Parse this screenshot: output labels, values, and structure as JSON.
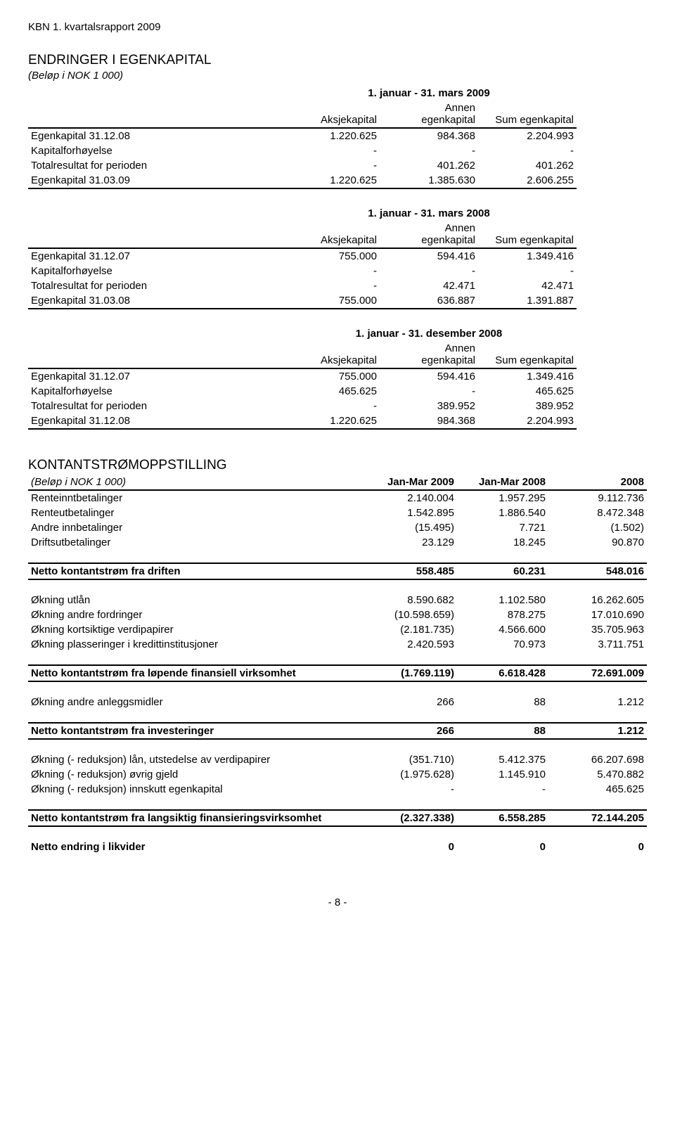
{
  "doc": {
    "header": "KBN 1. kvartalsrapport 2009",
    "footer": "- 8 -"
  },
  "equity": {
    "title": "ENDRINGER I EGENKAPITAL",
    "subnote": "(Beløp i NOK 1 000)",
    "colhead": {
      "aksje": "Aksjekapital",
      "annen": "Annen egenkapital",
      "sum": "Sum egenkapital"
    },
    "blocks": [
      {
        "period": "1. januar - 31. mars 2009",
        "rows": [
          {
            "label": "Egenkapital 31.12.08",
            "a": "1.220.625",
            "b": "984.368",
            "c": "2.204.993"
          },
          {
            "label": "Kapitalforhøyelse",
            "a": "-",
            "b": "-",
            "c": "-"
          },
          {
            "label": "Totalresultat for perioden",
            "a": "-",
            "b": "401.262",
            "c": "401.262"
          },
          {
            "label": "Egenkapital 31.03.09",
            "a": "1.220.625",
            "b": "1.385.630",
            "c": "2.606.255"
          }
        ]
      },
      {
        "period": "1. januar - 31. mars 2008",
        "rows": [
          {
            "label": "Egenkapital 31.12.07",
            "a": "755.000",
            "b": "594.416",
            "c": "1.349.416"
          },
          {
            "label": "Kapitalforhøyelse",
            "a": "-",
            "b": "-",
            "c": "-"
          },
          {
            "label": "Totalresultat for perioden",
            "a": "-",
            "b": "42.471",
            "c": "42.471"
          },
          {
            "label": "Egenkapital 31.03.08",
            "a": "755.000",
            "b": "636.887",
            "c": "1.391.887"
          }
        ]
      },
      {
        "period": "1. januar - 31. desember 2008",
        "rows": [
          {
            "label": "Egenkapital 31.12.07",
            "a": "755.000",
            "b": "594.416",
            "c": "1.349.416"
          },
          {
            "label": "Kapitalforhøyelse",
            "a": "465.625",
            "b": "-",
            "c": "465.625"
          },
          {
            "label": "Totalresultat for perioden",
            "a": "-",
            "b": "389.952",
            "c": "389.952"
          },
          {
            "label": "Egenkapital 31.12.08",
            "a": "1.220.625",
            "b": "984.368",
            "c": "2.204.993"
          }
        ]
      }
    ]
  },
  "cashflow": {
    "title": "KONTANTSTRØMOPPSTILLING",
    "subnote": "(Beløp i NOK 1 000)",
    "cols": [
      "Jan-Mar 2009",
      "Jan-Mar 2008",
      "2008"
    ],
    "sections": [
      {
        "rows": [
          {
            "label": "Renteinntbetalinger",
            "v": [
              "2.140.004",
              "1.957.295",
              "9.112.736"
            ]
          },
          {
            "label": "Renteutbetalinger",
            "v": [
              "1.542.895",
              "1.886.540",
              "8.472.348"
            ]
          },
          {
            "label": "Andre innbetalinger",
            "v": [
              "(15.495)",
              "7.721",
              "(1.502)"
            ]
          },
          {
            "label": "Driftsutbetalinger",
            "v": [
              "23.129",
              "18.245",
              "90.870"
            ]
          }
        ],
        "total": {
          "label": "Netto kontantstrøm fra driften",
          "v": [
            "558.485",
            "60.231",
            "548.016"
          ]
        }
      },
      {
        "rows": [
          {
            "label": "Økning utlån",
            "v": [
              "8.590.682",
              "1.102.580",
              "16.262.605"
            ]
          },
          {
            "label": "Økning andre fordringer",
            "v": [
              "(10.598.659)",
              "878.275",
              "17.010.690"
            ]
          },
          {
            "label": "Økning kortsiktige verdipapirer",
            "v": [
              "(2.181.735)",
              "4.566.600",
              "35.705.963"
            ]
          },
          {
            "label": "Økning plasseringer i kredittinstitusjoner",
            "v": [
              "2.420.593",
              "70.973",
              "3.711.751"
            ]
          }
        ],
        "total": {
          "label": "Netto kontantstrøm fra løpende finansiell virksomhet",
          "v": [
            "(1.769.119)",
            "6.618.428",
            "72.691.009"
          ]
        }
      },
      {
        "rows": [
          {
            "label": "Økning andre anleggsmidler",
            "v": [
              "266",
              "88",
              "1.212"
            ]
          }
        ],
        "total": {
          "label": "Netto kontantstrøm fra investeringer",
          "v": [
            "266",
            "88",
            "1.212"
          ]
        }
      },
      {
        "rows": [
          {
            "label": "Økning (- reduksjon) lån, utstedelse av verdipapirer",
            "v": [
              "(351.710)",
              "5.412.375",
              "66.207.698"
            ]
          },
          {
            "label": "Økning (- reduksjon) øvrig gjeld",
            "v": [
              "(1.975.628)",
              "1.145.910",
              "5.470.882"
            ]
          },
          {
            "label": "Økning (- reduksjon) innskutt egenkapital",
            "v": [
              "-",
              "-",
              "465.625"
            ]
          }
        ],
        "total": {
          "label": "Netto kontantstrøm fra langsiktig finansieringsvirksomhet",
          "v": [
            "(2.327.338)",
            "6.558.285",
            "72.144.205"
          ]
        }
      }
    ],
    "final": {
      "label": "Netto endring i likvider",
      "v": [
        "0",
        "0",
        "0"
      ]
    }
  }
}
